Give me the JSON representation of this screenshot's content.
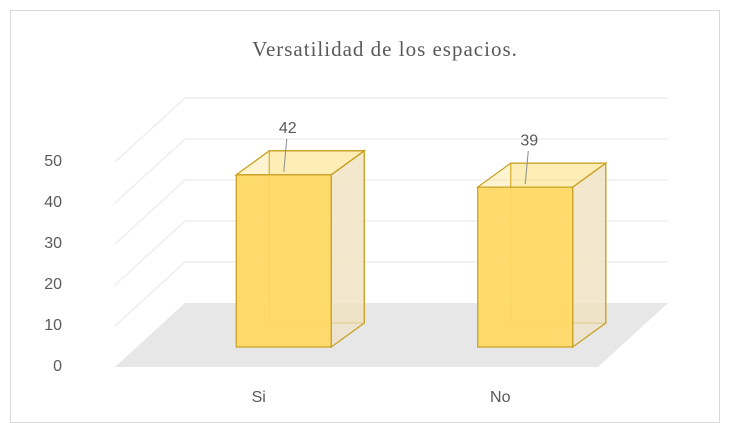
{
  "chart_data": {
    "type": "bar3d",
    "title": "Versatilidad de los espacios.",
    "categories": [
      "Si",
      "No"
    ],
    "values": [
      42,
      39
    ],
    "color": "#ffd966",
    "ylim": [
      0,
      50
    ],
    "yticks": [
      0,
      10,
      20,
      30,
      40,
      50
    ],
    "grid": true
  }
}
